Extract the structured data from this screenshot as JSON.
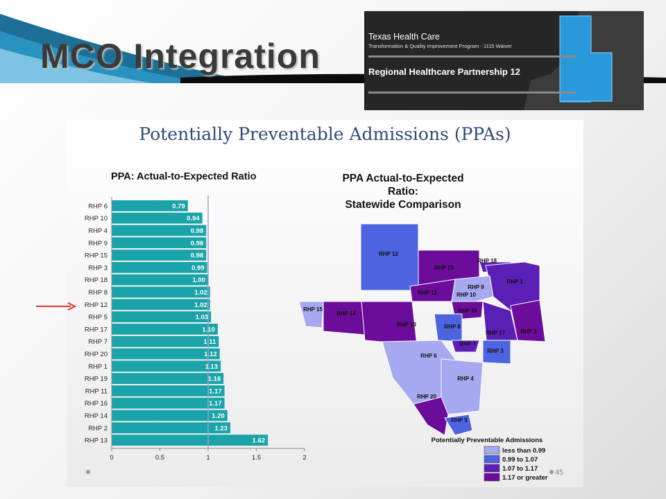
{
  "slide": {
    "title": "MCO Integration",
    "page_number": "45"
  },
  "banner": {
    "line1": "Texas Health Care",
    "line2": "Transformation & Quality Improvement Program - 1115 Waiver",
    "line3": "Regional Healthcare Partnership 12"
  },
  "panel": {
    "title": "Potentially Preventable Admissions (PPAs)"
  },
  "map": {
    "title_lines": [
      "PPA Actual-to-Expected",
      "Ratio:",
      "Statewide Comparison"
    ],
    "legend_title": "Potentially Preventable Admissions",
    "legend": [
      {
        "label": "less than 0.99",
        "color": "#a6a8f0"
      },
      {
        "label": "0.99 to 1.07",
        "color": "#4d63e0"
      },
      {
        "label": "1.07 to 1.17",
        "color": "#5a1fb5"
      },
      {
        "label": "1.17 or greater",
        "color": "#6b0d9a"
      }
    ],
    "region_labels": [
      "RHP 12",
      "RHP 19",
      "RHP 18",
      "RHP 1",
      "RHP 9",
      "RHP 11",
      "RHP 10",
      "RHP 15",
      "RHP 14",
      "RHP 16",
      "RHP 13",
      "RHP 8",
      "RHP 17",
      "RHP 2",
      "RHP 7",
      "RHP 3",
      "RHP 6",
      "RHP 4",
      "RHP 20",
      "RHP 5"
    ]
  },
  "chart_data": {
    "type": "bar",
    "orientation": "horizontal",
    "title": "PPA: Actual-to-Expected Ratio",
    "categories": [
      "RHP 6",
      "RHP 10",
      "RHP 4",
      "RHP 9",
      "RHP 15",
      "RHP 3",
      "RHP 18",
      "RHP 8",
      "RHP 12",
      "RHP 5",
      "RHP 17",
      "RHP 7",
      "RHP 20",
      "RHP 1",
      "RHP 19",
      "RHP 11",
      "RHP 16",
      "RHP 14",
      "RHP 2",
      "RHP 13"
    ],
    "values": [
      0.79,
      0.94,
      0.98,
      0.98,
      0.98,
      0.99,
      1.0,
      1.02,
      1.02,
      1.03,
      1.1,
      1.11,
      1.12,
      1.13,
      1.16,
      1.17,
      1.17,
      1.2,
      1.23,
      1.62
    ],
    "value_labels": [
      "0.79",
      "0.94",
      "0.98",
      "0.98",
      "0.98",
      "0.99",
      "1.00",
      "1.02",
      "1.02",
      "1.03",
      "1.10",
      "1.11",
      "1.12",
      "1.13",
      "1.16",
      "1.17",
      "1.17",
      "1.20",
      "1.23",
      "1.62"
    ],
    "xlim": [
      0,
      2
    ],
    "xticks": [
      "0",
      "0.5",
      "1",
      "1.5",
      "2"
    ],
    "reference_line": 1,
    "bar_color": "#1aa3a8",
    "highlighted_category": "RHP 12",
    "highlight_color": "#e03030"
  }
}
